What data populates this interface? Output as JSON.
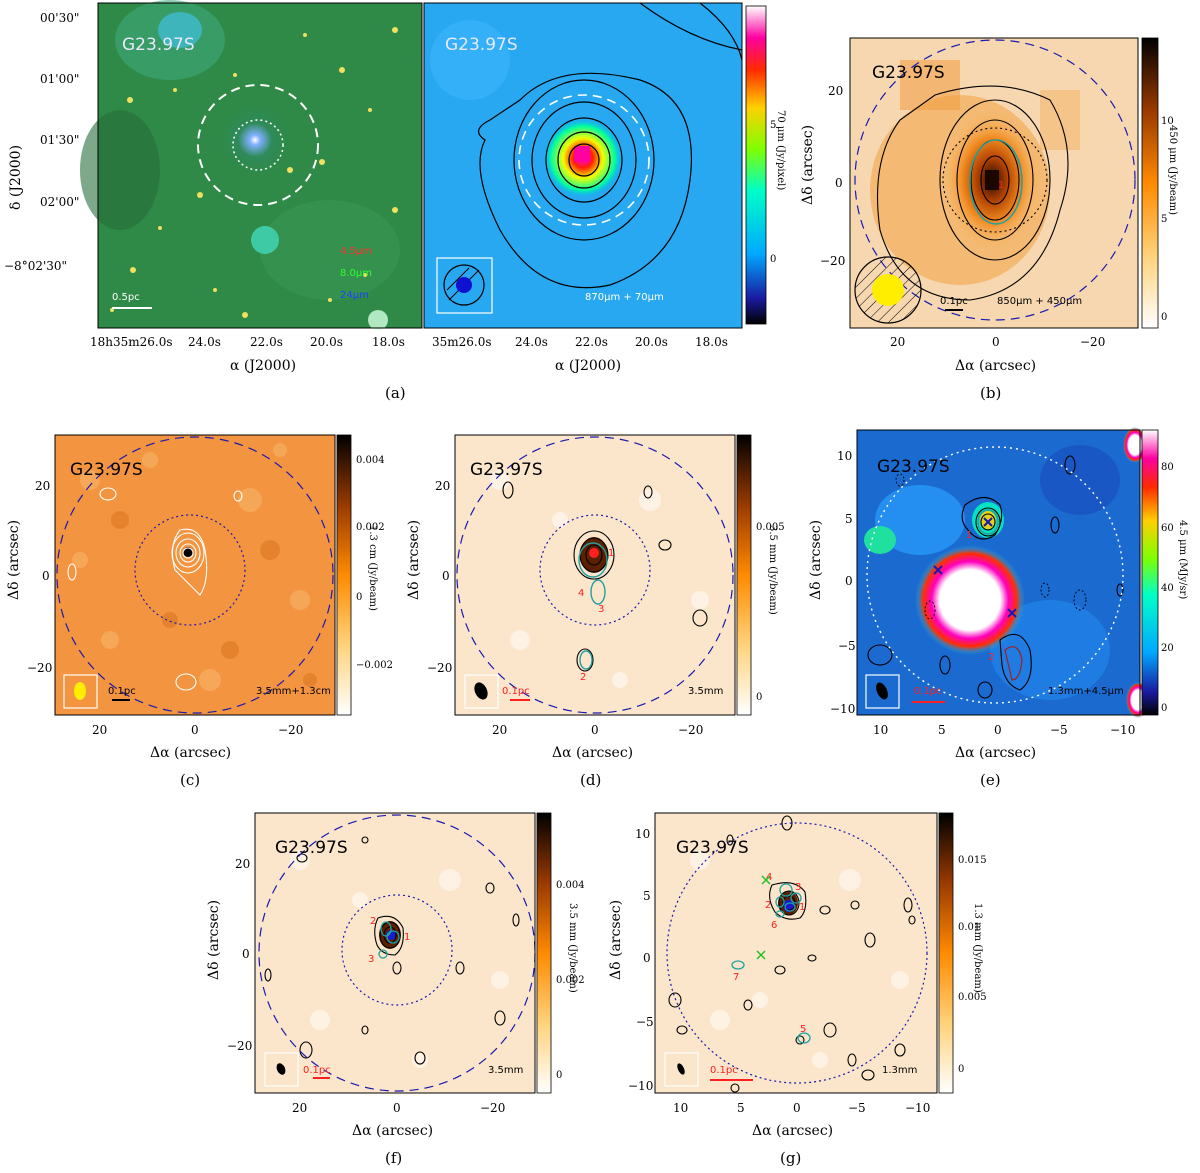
{
  "figure": {
    "source_name": "G23.97S",
    "panel_a": {
      "caption": "(a)",
      "ytick_labels": [
        "00'30\"",
        "01'00\"",
        "01'30\"",
        "02'00\"",
        "−8°02'30\""
      ],
      "ylabel": "δ (J2000)",
      "left_xticks": [
        "18h35m26.0s",
        "24.0s",
        "22.0s",
        "20.0s",
        "18.0s"
      ],
      "right_xticks": [
        "35m26.0s",
        "24.0s",
        "22.0s",
        "20.0s",
        "18.0s"
      ],
      "xlabel": "α (J2000)",
      "legend": [
        "4.5μm",
        "8.0μm",
        "24μm"
      ],
      "scalebar": "0.5pc",
      "right_label": "870μm + 70μm",
      "colorbar_label": "70 μm (Jy/pixel)",
      "colorbar_ticks": [
        "5",
        "0"
      ]
    },
    "panel_b": {
      "caption": "(b)",
      "label": "850μm + 450μm",
      "scalebar": "0.1pc",
      "colorbar_label": "450 μm (Jy/beam)",
      "colorbar_ticks": [
        "10",
        "5",
        "0"
      ],
      "xticks": [
        "20",
        "0",
        "−20"
      ],
      "yticks": [
        "20",
        "0",
        "−20"
      ],
      "xlabel": "Δα (arcsec)",
      "ylabel": "Δδ (arcsec)",
      "source_numbers": [
        "1"
      ]
    },
    "panel_c": {
      "caption": "(c)",
      "label": "3.5mm+1.3cm",
      "scalebar": "0.1pc",
      "colorbar_label": "1.3 cm (Jy/beam)",
      "colorbar_ticks": [
        "0.004",
        "0.002",
        "0",
        "−0.002"
      ],
      "xticks": [
        "20",
        "0",
        "−20"
      ],
      "yticks": [
        "20",
        "0",
        "−20"
      ],
      "xlabel": "Δα (arcsec)",
      "ylabel": "Δδ (arcsec)"
    },
    "panel_d": {
      "caption": "(d)",
      "label": "3.5mm",
      "scalebar": "0.1pc",
      "colorbar_label": "3.5 mm (Jy/beam)",
      "colorbar_ticks": [
        "0.005",
        "0"
      ],
      "xticks": [
        "20",
        "0",
        "−20"
      ],
      "yticks": [
        "20",
        "0",
        "−20"
      ],
      "xlabel": "Δα (arcsec)",
      "ylabel": "Δδ (arcsec)",
      "source_numbers": [
        "1",
        "4",
        "3",
        "2"
      ]
    },
    "panel_e": {
      "caption": "(e)",
      "label": "1.3mm+4.5μm",
      "scalebar": "0.1pc",
      "colorbar_label": "4.5 μm (MJy/sr)",
      "colorbar_ticks": [
        "80",
        "60",
        "40",
        "20",
        "0"
      ],
      "xticks": [
        "10",
        "5",
        "0",
        "−5",
        "−10"
      ],
      "yticks": [
        "10",
        "5",
        "0",
        "−5",
        "−10"
      ],
      "xlabel": "Δα (arcsec)",
      "ylabel": "Δδ (arcsec)",
      "source_numbers": [
        "1",
        "2"
      ]
    },
    "panel_f": {
      "caption": "(f)",
      "label": "3.5mm",
      "scalebar": "0.1pc",
      "colorbar_label": "3.5 mm (Jy/beam)",
      "colorbar_ticks": [
        "0.004",
        "0.002",
        "0"
      ],
      "xticks": [
        "20",
        "0",
        "−20"
      ],
      "yticks": [
        "20",
        "0",
        "−20"
      ],
      "xlabel": "Δα (arcsec)",
      "ylabel": "Δδ (arcsec)",
      "source_numbers": [
        "2",
        "1",
        "3"
      ]
    },
    "panel_g": {
      "caption": "(g)",
      "label": "1.3mm",
      "scalebar": "0.1pc",
      "colorbar_label": "1.3 mm (Jy/beam)",
      "colorbar_ticks": [
        "0.015",
        "0.01",
        "0.005",
        "0"
      ],
      "xticks": [
        "10",
        "5",
        "0",
        "−5",
        "−10"
      ],
      "yticks": [
        "10",
        "5",
        "0",
        "−5",
        "−10"
      ],
      "xlabel": "Δα (arcsec)",
      "ylabel": "Δδ (arcsec)",
      "source_numbers": [
        "4",
        "3",
        "2",
        "1",
        "6",
        "7",
        "5"
      ]
    }
  }
}
